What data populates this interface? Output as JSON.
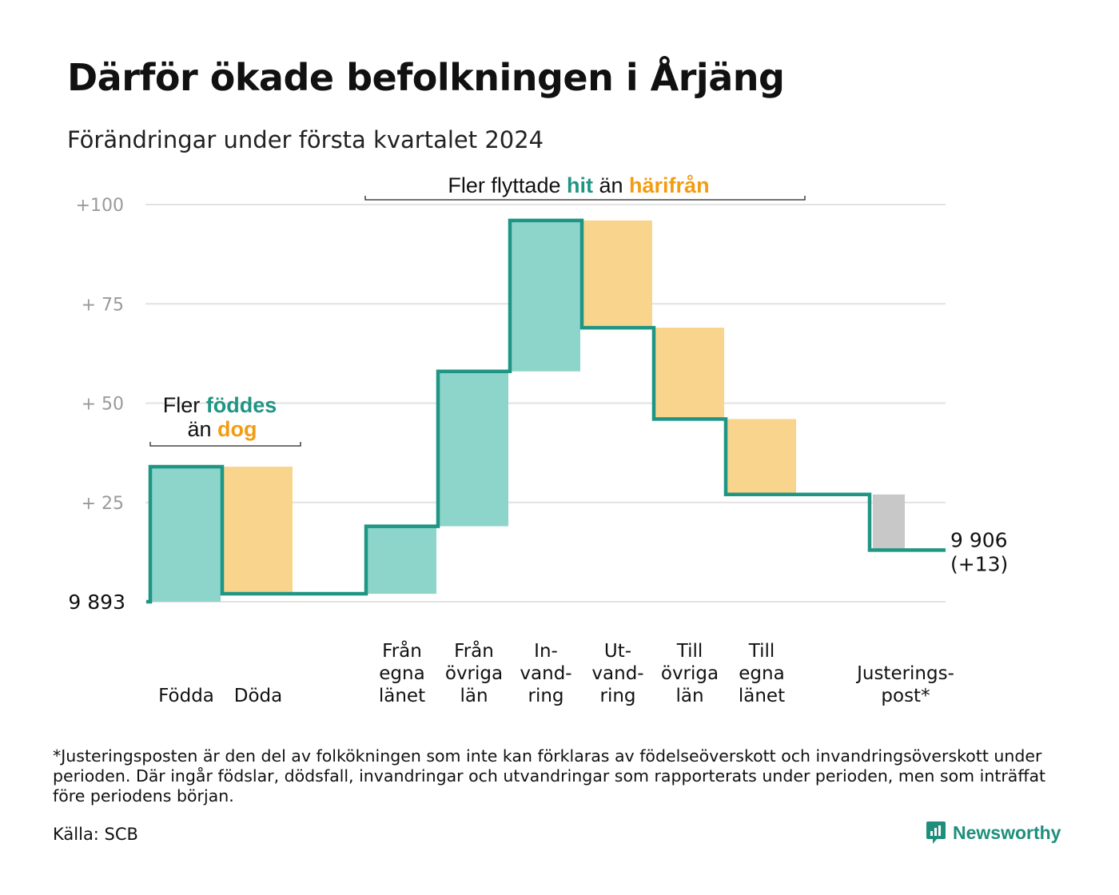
{
  "title": "Därför ökade befolkningen i Årjäng",
  "subtitle": "Förändringar under första kvartalet 2024",
  "footnote": "*Justeringsposten är den del av folkökningen som inte kan förklaras av födelseöverskott och invandringsöverskott under perioden. Där ingår födslar, dödsfall, invandringar och utvandringar som rapporterats under perioden, men som inträffat före periodens början.",
  "source": "Källa: SCB",
  "brand": "Newsworthy",
  "annotations": {
    "births": {
      "prefix": "Fler",
      "hl1": "föddes",
      "mid": "än",
      "hl2": "dog"
    },
    "migration": {
      "prefix": "Fler flyttade",
      "hl1": "hit",
      "mid": "än",
      "hl2": "härifrån"
    }
  },
  "colors": {
    "line": "#1f9584",
    "increase": "#8dd5cb",
    "decrease": "#f9d48c",
    "adjustment": "#c8c8c8",
    "highlight_green": "#1f9584",
    "highlight_orange": "#f39c12",
    "grid": "#e2e2e2"
  },
  "chart_data": {
    "type": "waterfall",
    "baseline_label": "9  893",
    "end_label": [
      "9 906",
      "(+13)"
    ],
    "ylim": [
      0,
      100
    ],
    "yticks": [
      {
        "value": 25,
        "label": "+  25"
      },
      {
        "value": 50,
        "label": "+  50"
      },
      {
        "value": 75,
        "label": "+  75"
      },
      {
        "value": 100,
        "label": "+100"
      }
    ],
    "steps": [
      {
        "label": [
          "",
          "Födda"
        ],
        "from": 0,
        "to": 34,
        "kind": "increase"
      },
      {
        "label": [
          "",
          "Döda"
        ],
        "from": 34,
        "to": 2,
        "kind": "decrease"
      },
      {
        "label": [
          ""
        ],
        "from": 2,
        "to": 2,
        "kind": "gap"
      },
      {
        "label": [
          "Från",
          "egna",
          "länet"
        ],
        "from": 2,
        "to": 19,
        "kind": "increase"
      },
      {
        "label": [
          "Från",
          "övriga",
          "län"
        ],
        "from": 19,
        "to": 58,
        "kind": "increase"
      },
      {
        "label": [
          "In-",
          "vand-",
          "ring"
        ],
        "from": 58,
        "to": 96,
        "kind": "increase"
      },
      {
        "label": [
          "Ut-",
          "vand-",
          "ring"
        ],
        "from": 96,
        "to": 69,
        "kind": "decrease"
      },
      {
        "label": [
          "Till",
          "övriga",
          "län"
        ],
        "from": 69,
        "to": 46,
        "kind": "decrease"
      },
      {
        "label": [
          "Till",
          "egna",
          "länet"
        ],
        "from": 46,
        "to": 27,
        "kind": "decrease"
      },
      {
        "label": [
          ""
        ],
        "from": 27,
        "to": 27,
        "kind": "gap"
      },
      {
        "label": [
          "Justerings-",
          "post*"
        ],
        "from": 27,
        "to": 13,
        "kind": "adjustment"
      }
    ]
  }
}
